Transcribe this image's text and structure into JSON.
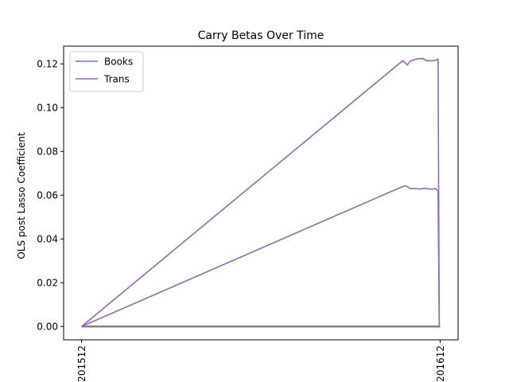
{
  "chart_data": {
    "type": "line",
    "title": "Carry Betas Over Time",
    "xlabel": "",
    "ylabel": "OLS post Lasso Coefficient",
    "x_tick_labels": [
      "201512",
      "201612"
    ],
    "x_tick_positions": [
      0,
      12
    ],
    "ylim": [
      -0.0061,
      0.1281
    ],
    "xlim": [
      -0.6,
      12.6
    ],
    "y_ticks": [
      0.0,
      0.02,
      0.04,
      0.06,
      0.08,
      0.1,
      0.12
    ],
    "y_tick_labels": [
      "0.00",
      "0.02",
      "0.04",
      "0.06",
      "0.08",
      "0.10",
      "0.12"
    ],
    "grid": false,
    "legend": {
      "position": "top-left"
    },
    "series": [
      {
        "name": "Books",
        "color": "#9467bd",
        "x": [
          0,
          10.7,
          10.85,
          11.0,
          11.15,
          11.3,
          11.5,
          11.7,
          11.85,
          11.93,
          11.97,
          12.0
        ],
        "y": [
          0.0,
          0.0637,
          0.0643,
          0.063,
          0.0631,
          0.0628,
          0.0631,
          0.0627,
          0.063,
          0.0618,
          0.0,
          0.0
        ]
      },
      {
        "name": "Trans",
        "color": "#9467bd",
        "x": [
          0,
          10.75,
          10.9,
          11.0,
          11.2,
          11.4,
          11.55,
          11.7,
          11.85,
          11.93,
          11.97,
          12.0
        ],
        "y": [
          0.0,
          0.1215,
          0.1195,
          0.1213,
          0.1222,
          0.1225,
          0.1215,
          0.1214,
          0.1216,
          0.1222,
          0.0,
          0.0
        ]
      },
      {
        "color": "#17becf",
        "x": [
          0,
          12
        ],
        "y": [
          0.0,
          0.0
        ]
      },
      {
        "color": "#bcbd22",
        "x": [
          0,
          12
        ],
        "y": [
          0.0,
          0.0
        ]
      },
      {
        "color": "#7f7f7f",
        "x": [
          0,
          12
        ],
        "y": [
          0.0,
          0.0
        ]
      }
    ]
  }
}
